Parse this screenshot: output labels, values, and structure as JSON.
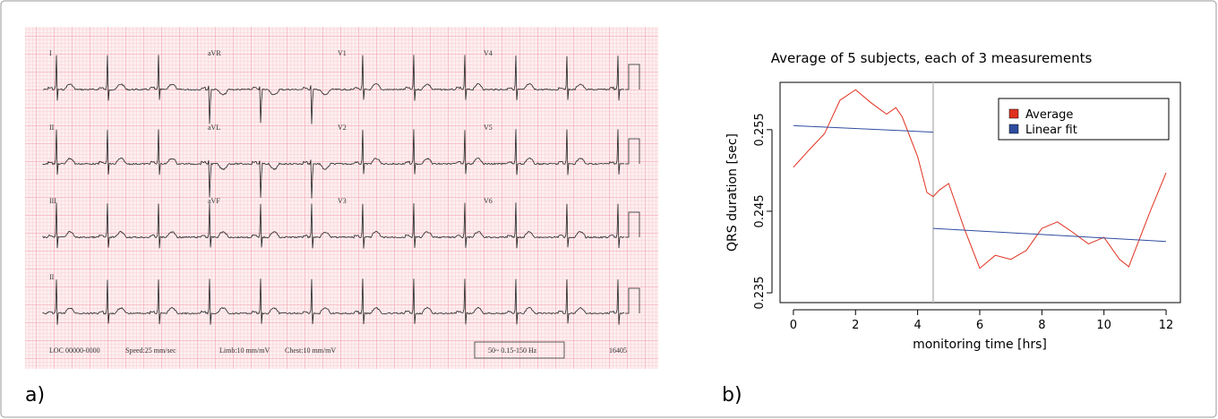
{
  "panels": {
    "a": "a)",
    "b": "b)"
  },
  "ecg": {
    "leads": [
      "I",
      "aVR",
      "V1",
      "V4",
      "II",
      "aVL",
      "V2",
      "V5",
      "III",
      "aVF",
      "V3",
      "V6",
      "II"
    ],
    "footer": [
      "LOC 00000-0000",
      "Speed:25 mm/sec",
      "Limb:10 mm/mV",
      "Chest:10 mm/mV",
      "50~ 0.15-150 Hz",
      "16405"
    ]
  },
  "chart_data": {
    "type": "line",
    "title": "Average of 5 subjects, each of 3 measurements",
    "x_label": "monitoring time [hrs]",
    "y_label": "QRS duration [sec]",
    "xlim": [
      -0.43,
      12.46
    ],
    "ylim": [
      0.2338,
      0.2608
    ],
    "xticks": [
      0,
      2,
      4,
      6,
      8,
      10,
      12
    ],
    "yticks": [
      0.235,
      0.245,
      0.255
    ],
    "vline": 4.5,
    "vline_color": "#bbbbbb",
    "legend": "top-right",
    "series": [
      {
        "name": "Average",
        "color": "#e0301e",
        "x": [
          0,
          0.5,
          1,
          1.5,
          2,
          2.5,
          3,
          3.3,
          3.5,
          4,
          4.3,
          4.5,
          4.7,
          5,
          5.5,
          6,
          6.5,
          7,
          7.5,
          8,
          8.5,
          9,
          9.5,
          10,
          10.5,
          10.8,
          11,
          11.5,
          12
        ],
        "values": [
          0.2504,
          0.2525,
          0.2545,
          0.2586,
          0.2599,
          0.2583,
          0.2569,
          0.2577,
          0.2566,
          0.2517,
          0.2473,
          0.2468,
          0.2476,
          0.2484,
          0.2429,
          0.238,
          0.2396,
          0.2391,
          0.2402,
          0.2429,
          0.2437,
          0.2424,
          0.241,
          0.2418,
          0.2391,
          0.2382,
          0.2402,
          0.2451,
          0.2497
        ]
      },
      {
        "name": "Linear fit",
        "color": "#2e4da0",
        "x": [
          0,
          4.5,
          4.5,
          4.5,
          12
        ],
        "values": [
          0.2555,
          0.2547,
          null,
          0.2429,
          0.2413
        ]
      }
    ]
  }
}
